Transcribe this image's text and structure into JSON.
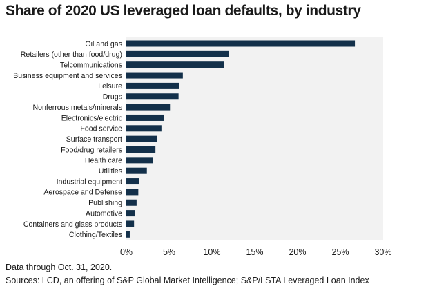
{
  "title": "Share of 2020 US leveraged loan defaults, by industry",
  "footnotes": {
    "date": "Data through Oct. 31, 2020.",
    "sources": "Sources: LCD, an offering of S&P Global Market Intelligence; S&P/LSTA Leveraged Loan Index"
  },
  "colors": {
    "bar": "#13304a",
    "plot_background": "#f2f2f2",
    "axis": "#555555"
  },
  "chart_data": {
    "type": "bar",
    "orientation": "horizontal",
    "title": "Share of 2020 US leveraged loan defaults, by industry",
    "xlabel": "",
    "ylabel": "",
    "xlim": [
      0,
      30
    ],
    "grid": false,
    "legend": "none",
    "categories": [
      "Oil and gas",
      "Retailers (other than food/drug)",
      "Telcommunications",
      "Business equipment and services",
      "Leisure",
      "Drugs",
      "Nonferrous metals/minerals",
      "Electronics/electric",
      "Food service",
      "Surface transport",
      "Food/drug retailers",
      "Health care",
      "Utilities",
      "Industrial equipment",
      "Aerospace and Defense",
      "Publishing",
      "Automotive",
      "Containers and glass products",
      "Clothing/Textiles"
    ],
    "values": [
      26.7,
      12.0,
      11.4,
      6.6,
      6.2,
      6.1,
      5.1,
      4.4,
      4.1,
      3.6,
      3.4,
      3.1,
      2.4,
      1.5,
      1.4,
      1.2,
      1.0,
      0.9,
      0.4
    ],
    "x_ticks": [
      0,
      5,
      10,
      15,
      20,
      25,
      30
    ],
    "x_tick_labels": [
      "0%",
      "5%",
      "10%",
      "15%",
      "20%",
      "25%",
      "30%"
    ]
  }
}
